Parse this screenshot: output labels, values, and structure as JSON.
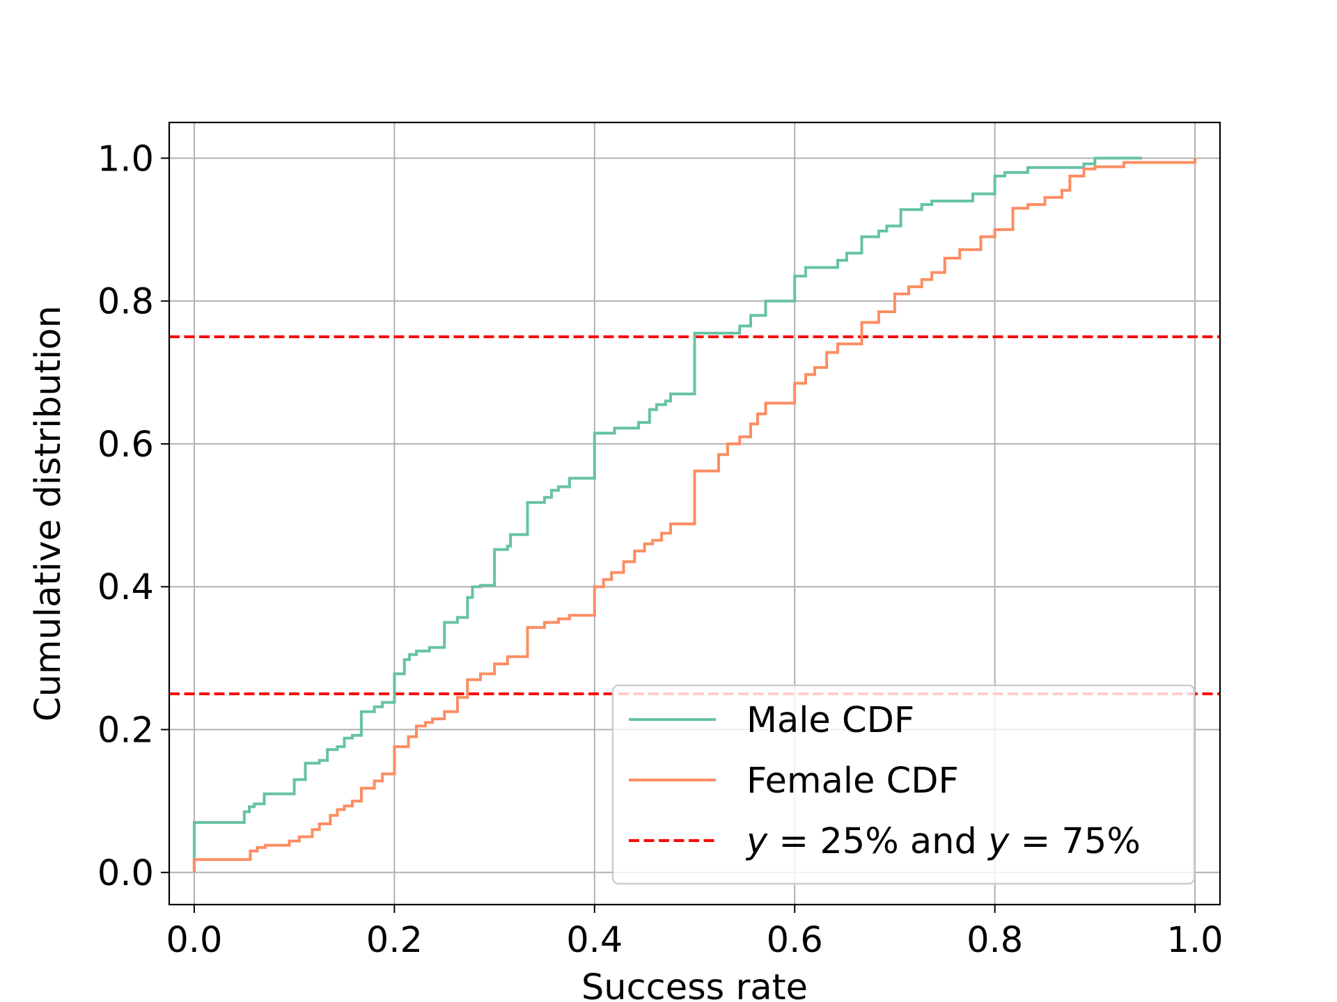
{
  "chart_data": {
    "type": "line",
    "xlabel": "Success rate",
    "ylabel": "Cumulative distribution",
    "xlim": [
      -0.025,
      1.025
    ],
    "ylim": [
      -0.045,
      1.05
    ],
    "xticks": [
      "0.0",
      "0.2",
      "0.4",
      "0.6",
      "0.8",
      "1.0"
    ],
    "yticks": [
      "0.0",
      "0.2",
      "0.4",
      "0.6",
      "0.8",
      "1.0"
    ],
    "grid": true,
    "legend_position": "lower-right",
    "colors": {
      "male": "#66c2a5",
      "female": "#fc8d62",
      "ref": "#ff0000"
    },
    "series": [
      {
        "name": "Male CDF",
        "style": "step",
        "points": [
          [
            0.0,
            0.0
          ],
          [
            0.0,
            0.07
          ],
          [
            0.05,
            0.07
          ],
          [
            0.05,
            0.085
          ],
          [
            0.055,
            0.085
          ],
          [
            0.055,
            0.092
          ],
          [
            0.06,
            0.092
          ],
          [
            0.06,
            0.096
          ],
          [
            0.07,
            0.096
          ],
          [
            0.07,
            0.11
          ],
          [
            0.1,
            0.11
          ],
          [
            0.1,
            0.13
          ],
          [
            0.111,
            0.13
          ],
          [
            0.111,
            0.153
          ],
          [
            0.125,
            0.153
          ],
          [
            0.125,
            0.157
          ],
          [
            0.133,
            0.157
          ],
          [
            0.133,
            0.172
          ],
          [
            0.143,
            0.172
          ],
          [
            0.143,
            0.176
          ],
          [
            0.15,
            0.176
          ],
          [
            0.15,
            0.188
          ],
          [
            0.158,
            0.188
          ],
          [
            0.158,
            0.192
          ],
          [
            0.167,
            0.192
          ],
          [
            0.167,
            0.225
          ],
          [
            0.18,
            0.225
          ],
          [
            0.18,
            0.232
          ],
          [
            0.188,
            0.232
          ],
          [
            0.188,
            0.238
          ],
          [
            0.2,
            0.238
          ],
          [
            0.2,
            0.278
          ],
          [
            0.21,
            0.278
          ],
          [
            0.21,
            0.298
          ],
          [
            0.215,
            0.298
          ],
          [
            0.215,
            0.305
          ],
          [
            0.222,
            0.305
          ],
          [
            0.222,
            0.31
          ],
          [
            0.235,
            0.31
          ],
          [
            0.235,
            0.315
          ],
          [
            0.25,
            0.315
          ],
          [
            0.25,
            0.35
          ],
          [
            0.263,
            0.35
          ],
          [
            0.263,
            0.357
          ],
          [
            0.273,
            0.357
          ],
          [
            0.273,
            0.385
          ],
          [
            0.278,
            0.385
          ],
          [
            0.278,
            0.4
          ],
          [
            0.286,
            0.4
          ],
          [
            0.286,
            0.402
          ],
          [
            0.3,
            0.402
          ],
          [
            0.3,
            0.452
          ],
          [
            0.313,
            0.452
          ],
          [
            0.313,
            0.457
          ],
          [
            0.316,
            0.457
          ],
          [
            0.316,
            0.473
          ],
          [
            0.333,
            0.473
          ],
          [
            0.333,
            0.518
          ],
          [
            0.35,
            0.518
          ],
          [
            0.35,
            0.525
          ],
          [
            0.357,
            0.525
          ],
          [
            0.357,
            0.535
          ],
          [
            0.364,
            0.535
          ],
          [
            0.364,
            0.54
          ],
          [
            0.375,
            0.54
          ],
          [
            0.375,
            0.552
          ],
          [
            0.4,
            0.552
          ],
          [
            0.4,
            0.615
          ],
          [
            0.42,
            0.615
          ],
          [
            0.42,
            0.622
          ],
          [
            0.444,
            0.622
          ],
          [
            0.444,
            0.63
          ],
          [
            0.455,
            0.63
          ],
          [
            0.455,
            0.648
          ],
          [
            0.462,
            0.648
          ],
          [
            0.462,
            0.655
          ],
          [
            0.471,
            0.655
          ],
          [
            0.471,
            0.66
          ],
          [
            0.476,
            0.66
          ],
          [
            0.476,
            0.67
          ],
          [
            0.5,
            0.67
          ],
          [
            0.5,
            0.755
          ],
          [
            0.545,
            0.755
          ],
          [
            0.545,
            0.765
          ],
          [
            0.556,
            0.765
          ],
          [
            0.556,
            0.78
          ],
          [
            0.571,
            0.78
          ],
          [
            0.571,
            0.8
          ],
          [
            0.6,
            0.8
          ],
          [
            0.6,
            0.835
          ],
          [
            0.611,
            0.835
          ],
          [
            0.611,
            0.847
          ],
          [
            0.643,
            0.847
          ],
          [
            0.643,
            0.857
          ],
          [
            0.652,
            0.857
          ],
          [
            0.652,
            0.867
          ],
          [
            0.667,
            0.867
          ],
          [
            0.667,
            0.89
          ],
          [
            0.684,
            0.89
          ],
          [
            0.684,
            0.898
          ],
          [
            0.692,
            0.898
          ],
          [
            0.692,
            0.905
          ],
          [
            0.706,
            0.905
          ],
          [
            0.706,
            0.928
          ],
          [
            0.727,
            0.928
          ],
          [
            0.727,
            0.935
          ],
          [
            0.737,
            0.935
          ],
          [
            0.737,
            0.94
          ],
          [
            0.778,
            0.94
          ],
          [
            0.778,
            0.95
          ],
          [
            0.8,
            0.95
          ],
          [
            0.8,
            0.975
          ],
          [
            0.81,
            0.975
          ],
          [
            0.81,
            0.98
          ],
          [
            0.833,
            0.98
          ],
          [
            0.833,
            0.987
          ],
          [
            0.889,
            0.987
          ],
          [
            0.889,
            0.992
          ],
          [
            0.9,
            0.992
          ],
          [
            0.9,
            1.0
          ],
          [
            0.947,
            1.0
          ]
        ]
      },
      {
        "name": "Female CDF",
        "style": "step",
        "points": [
          [
            0.0,
            0.0
          ],
          [
            0.0,
            0.018
          ],
          [
            0.056,
            0.018
          ],
          [
            0.056,
            0.03
          ],
          [
            0.063,
            0.03
          ],
          [
            0.063,
            0.035
          ],
          [
            0.071,
            0.035
          ],
          [
            0.071,
            0.038
          ],
          [
            0.095,
            0.038
          ],
          [
            0.095,
            0.044
          ],
          [
            0.105,
            0.044
          ],
          [
            0.105,
            0.05
          ],
          [
            0.118,
            0.05
          ],
          [
            0.118,
            0.06
          ],
          [
            0.125,
            0.06
          ],
          [
            0.125,
            0.068
          ],
          [
            0.136,
            0.068
          ],
          [
            0.136,
            0.08
          ],
          [
            0.143,
            0.08
          ],
          [
            0.143,
            0.088
          ],
          [
            0.15,
            0.088
          ],
          [
            0.15,
            0.093
          ],
          [
            0.158,
            0.093
          ],
          [
            0.158,
            0.1
          ],
          [
            0.167,
            0.1
          ],
          [
            0.167,
            0.118
          ],
          [
            0.18,
            0.118
          ],
          [
            0.18,
            0.128
          ],
          [
            0.188,
            0.128
          ],
          [
            0.188,
            0.138
          ],
          [
            0.2,
            0.138
          ],
          [
            0.2,
            0.176
          ],
          [
            0.214,
            0.176
          ],
          [
            0.214,
            0.19
          ],
          [
            0.222,
            0.19
          ],
          [
            0.222,
            0.205
          ],
          [
            0.231,
            0.205
          ],
          [
            0.231,
            0.21
          ],
          [
            0.238,
            0.21
          ],
          [
            0.238,
            0.215
          ],
          [
            0.25,
            0.215
          ],
          [
            0.25,
            0.225
          ],
          [
            0.263,
            0.225
          ],
          [
            0.263,
            0.245
          ],
          [
            0.273,
            0.245
          ],
          [
            0.273,
            0.27
          ],
          [
            0.286,
            0.27
          ],
          [
            0.286,
            0.278
          ],
          [
            0.3,
            0.278
          ],
          [
            0.3,
            0.292
          ],
          [
            0.313,
            0.292
          ],
          [
            0.313,
            0.302
          ],
          [
            0.333,
            0.302
          ],
          [
            0.333,
            0.343
          ],
          [
            0.35,
            0.343
          ],
          [
            0.35,
            0.35
          ],
          [
            0.364,
            0.35
          ],
          [
            0.364,
            0.355
          ],
          [
            0.375,
            0.355
          ],
          [
            0.375,
            0.36
          ],
          [
            0.4,
            0.36
          ],
          [
            0.4,
            0.4
          ],
          [
            0.409,
            0.4
          ],
          [
            0.409,
            0.41
          ],
          [
            0.417,
            0.41
          ],
          [
            0.417,
            0.42
          ],
          [
            0.429,
            0.42
          ],
          [
            0.429,
            0.435
          ],
          [
            0.44,
            0.435
          ],
          [
            0.44,
            0.45
          ],
          [
            0.45,
            0.45
          ],
          [
            0.45,
            0.46
          ],
          [
            0.458,
            0.46
          ],
          [
            0.458,
            0.465
          ],
          [
            0.467,
            0.465
          ],
          [
            0.467,
            0.475
          ],
          [
            0.476,
            0.475
          ],
          [
            0.476,
            0.488
          ],
          [
            0.5,
            0.488
          ],
          [
            0.5,
            0.562
          ],
          [
            0.524,
            0.562
          ],
          [
            0.524,
            0.585
          ],
          [
            0.533,
            0.585
          ],
          [
            0.533,
            0.6
          ],
          [
            0.545,
            0.6
          ],
          [
            0.545,
            0.61
          ],
          [
            0.556,
            0.61
          ],
          [
            0.556,
            0.628
          ],
          [
            0.563,
            0.628
          ],
          [
            0.563,
            0.642
          ],
          [
            0.571,
            0.642
          ],
          [
            0.571,
            0.657
          ],
          [
            0.6,
            0.657
          ],
          [
            0.6,
            0.685
          ],
          [
            0.611,
            0.685
          ],
          [
            0.611,
            0.697
          ],
          [
            0.62,
            0.697
          ],
          [
            0.62,
            0.707
          ],
          [
            0.632,
            0.707
          ],
          [
            0.632,
            0.728
          ],
          [
            0.643,
            0.728
          ],
          [
            0.643,
            0.74
          ],
          [
            0.667,
            0.74
          ],
          [
            0.667,
            0.77
          ],
          [
            0.684,
            0.77
          ],
          [
            0.684,
            0.785
          ],
          [
            0.7,
            0.785
          ],
          [
            0.7,
            0.81
          ],
          [
            0.714,
            0.81
          ],
          [
            0.714,
            0.82
          ],
          [
            0.727,
            0.82
          ],
          [
            0.727,
            0.83
          ],
          [
            0.737,
            0.83
          ],
          [
            0.737,
            0.84
          ],
          [
            0.75,
            0.84
          ],
          [
            0.75,
            0.86
          ],
          [
            0.765,
            0.86
          ],
          [
            0.765,
            0.872
          ],
          [
            0.786,
            0.872
          ],
          [
            0.786,
            0.89
          ],
          [
            0.8,
            0.89
          ],
          [
            0.8,
            0.9
          ],
          [
            0.818,
            0.9
          ],
          [
            0.818,
            0.93
          ],
          [
            0.833,
            0.93
          ],
          [
            0.833,
            0.935
          ],
          [
            0.85,
            0.935
          ],
          [
            0.85,
            0.945
          ],
          [
            0.867,
            0.945
          ],
          [
            0.867,
            0.955
          ],
          [
            0.875,
            0.955
          ],
          [
            0.875,
            0.975
          ],
          [
            0.889,
            0.975
          ],
          [
            0.889,
            0.985
          ],
          [
            0.9,
            0.985
          ],
          [
            0.9,
            0.988
          ],
          [
            0.929,
            0.988
          ],
          [
            0.929,
            0.994
          ],
          [
            1.0,
            0.994
          ],
          [
            1.0,
            1.0
          ]
        ]
      }
    ],
    "reference_lines": [
      {
        "y": 0.25
      },
      {
        "y": 0.75
      }
    ],
    "legend": [
      {
        "key": "male",
        "label": "Male CDF",
        "dash": false
      },
      {
        "key": "female",
        "label": "Female CDF",
        "dash": false
      },
      {
        "key": "ref",
        "label_parts": [
          "y",
          " = 25% and ",
          "y",
          " = 75%"
        ],
        "dash": true
      }
    ]
  }
}
